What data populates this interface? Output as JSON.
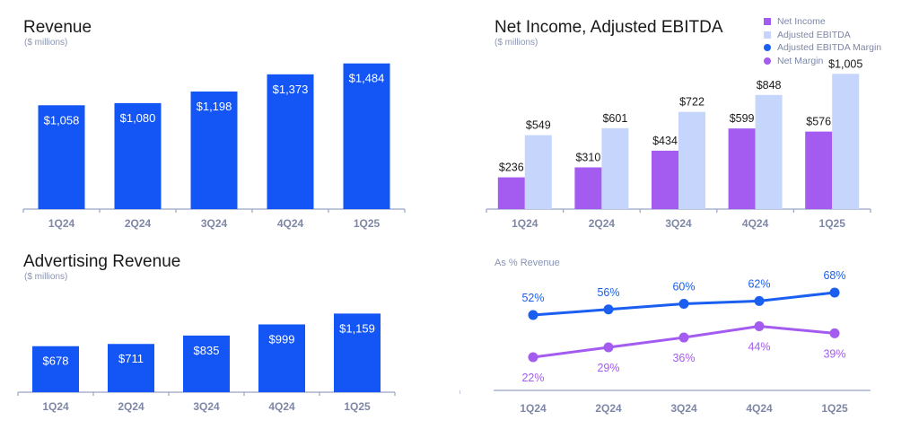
{
  "colors": {
    "blue": "#1455f5",
    "purple": "#a35bf0",
    "light_blue": "#c6d5fc",
    "line_blue": "#1a5ff0",
    "line_purple": "#a35bf0",
    "axis": "#9aa4c2",
    "tick_label": "#7e87a6"
  },
  "chart_data": [
    {
      "id": "revenue",
      "type": "bar",
      "title": "Revenue",
      "subtitle": "($ millions)",
      "categories": [
        "1Q24",
        "2Q24",
        "3Q24",
        "4Q24",
        "1Q25"
      ],
      "values": [
        1058,
        1080,
        1198,
        1373,
        1484
      ],
      "labels": [
        "$1,058",
        "$1,080",
        "$1,198",
        "$1,373",
        "$1,484"
      ],
      "ylim": [
        0,
        1600
      ]
    },
    {
      "id": "advertising-revenue",
      "type": "bar",
      "title": "Advertising Revenue",
      "subtitle": "($ millions)",
      "categories": [
        "1Q24",
        "2Q24",
        "3Q24",
        "4Q24",
        "1Q25"
      ],
      "values": [
        678,
        711,
        835,
        999,
        1159
      ],
      "labels": [
        "$678",
        "$711",
        "$835",
        "$999",
        "$1,159"
      ],
      "ylim": [
        0,
        1230
      ]
    },
    {
      "id": "net-income-ebitda",
      "type": "bar",
      "title": "Net Income, Adjusted EBITDA",
      "subtitle": "($ millions)",
      "categories": [
        "1Q24",
        "2Q24",
        "3Q24",
        "4Q24",
        "1Q25"
      ],
      "series": [
        {
          "name": "Net Income",
          "values": [
            236,
            310,
            434,
            599,
            576
          ],
          "labels": [
            "$236",
            "$310",
            "$434",
            "$599",
            "$576"
          ]
        },
        {
          "name": "Adjusted EBITDA",
          "values": [
            549,
            601,
            722,
            848,
            1005
          ],
          "labels": [
            "$549",
            "$601",
            "$722",
            "$848",
            "$1,005"
          ]
        }
      ],
      "ylim": [
        0,
        1100
      ]
    },
    {
      "id": "margins",
      "type": "line",
      "subtitle": "As % Revenue",
      "categories": [
        "1Q24",
        "2Q24",
        "3Q24",
        "4Q24",
        "1Q25"
      ],
      "series": [
        {
          "name": "Adjusted EBITDA Margin",
          "values": [
            52,
            56,
            60,
            62,
            68
          ],
          "labels": [
            "52%",
            "56%",
            "60%",
            "62%",
            "68%"
          ]
        },
        {
          "name": "Net Margin",
          "values": [
            22,
            29,
            36,
            44,
            39
          ],
          "labels": [
            "22%",
            "29%",
            "36%",
            "44%",
            "39%"
          ]
        }
      ]
    }
  ],
  "legend": [
    {
      "label": "Net Income",
      "shape": "square"
    },
    {
      "label": "Adjusted EBITDA",
      "shape": "square"
    },
    {
      "label": "Adjusted EBITDA Margin",
      "shape": "dot"
    },
    {
      "label": "Net Margin",
      "shape": "dot"
    }
  ]
}
